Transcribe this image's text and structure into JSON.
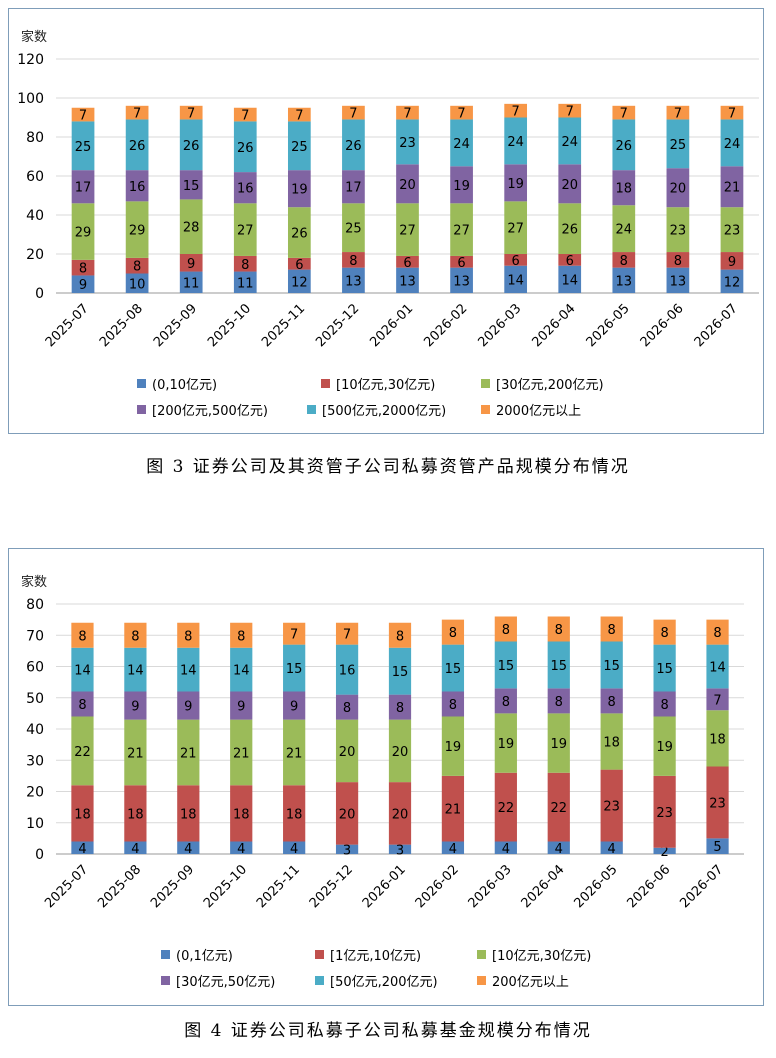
{
  "figures": [
    {
      "caption": "图 3   证券公司及其资管子公司私募资管产品规模分布情况",
      "chart_data": {
        "type": "bar",
        "stacked": true,
        "ylabel": "家数",
        "ylim": [
          0,
          120
        ],
        "yticks": [
          0,
          20,
          40,
          60,
          80,
          100,
          120
        ],
        "categories": [
          "2025-07",
          "2025-08",
          "2025-09",
          "2025-10",
          "2025-11",
          "2025-12",
          "2026-01",
          "2026-02",
          "2026-03",
          "2026-04",
          "2026-05",
          "2026-06",
          "2026-07"
        ],
        "series": [
          {
            "name": "(0,10亿元)",
            "color": "#4f81bd",
            "values": [
              9,
              10,
              11,
              11,
              12,
              13,
              13,
              13,
              14,
              14,
              13,
              13,
              12
            ]
          },
          {
            "name": "[10亿元,30亿元)",
            "color": "#c0504d",
            "values": [
              8,
              8,
              9,
              8,
              6,
              8,
              6,
              6,
              6,
              6,
              8,
              8,
              9
            ]
          },
          {
            "name": "[30亿元,200亿元)",
            "color": "#9bbb59",
            "values": [
              29,
              29,
              28,
              27,
              26,
              25,
              27,
              27,
              27,
              26,
              24,
              23,
              23
            ]
          },
          {
            "name": "[200亿元,500亿元)",
            "color": "#8064a2",
            "values": [
              17,
              16,
              15,
              16,
              19,
              17,
              20,
              19,
              19,
              20,
              18,
              20,
              21
            ]
          },
          {
            "name": "[500亿元,2000亿元)",
            "color": "#4bacc6",
            "values": [
              25,
              26,
              26,
              26,
              25,
              26,
              23,
              24,
              24,
              24,
              26,
              25,
              24
            ]
          },
          {
            "name": "2000亿元以上",
            "color": "#f79646",
            "values": [
              7,
              7,
              7,
              7,
              7,
              7,
              7,
              7,
              7,
              7,
              7,
              7,
              7
            ]
          }
        ],
        "grid": true,
        "legend_position": "bottom"
      }
    },
    {
      "caption": "图 4   证券公司私募子公司私募基金规模分布情况",
      "chart_data": {
        "type": "bar",
        "stacked": true,
        "ylabel": "家数",
        "ylim": [
          0,
          80
        ],
        "yticks": [
          0,
          10,
          20,
          30,
          40,
          50,
          60,
          70,
          80
        ],
        "categories": [
          "2025-07",
          "2025-08",
          "2025-09",
          "2025-10",
          "2025-11",
          "2025-12",
          "2026-01",
          "2026-02",
          "2026-03",
          "2026-04",
          "2026-05",
          "2026-06",
          "2026-07"
        ],
        "series": [
          {
            "name": "(0,1亿元)",
            "color": "#4f81bd",
            "values": [
              4,
              4,
              4,
              4,
              4,
              3,
              3,
              4,
              4,
              4,
              4,
              2,
              5
            ]
          },
          {
            "name": "[1亿元,10亿元)",
            "color": "#c0504d",
            "values": [
              18,
              18,
              18,
              18,
              18,
              20,
              20,
              21,
              22,
              22,
              23,
              23,
              23
            ]
          },
          {
            "name": "[10亿元,30亿元)",
            "color": "#9bbb59",
            "values": [
              22,
              21,
              21,
              21,
              21,
              20,
              20,
              19,
              19,
              19,
              18,
              19,
              18
            ]
          },
          {
            "name": "[30亿元,50亿元)",
            "color": "#8064a2",
            "values": [
              8,
              9,
              9,
              9,
              9,
              8,
              8,
              8,
              8,
              8,
              8,
              8,
              7
            ]
          },
          {
            "name": "[50亿元,200亿元)",
            "color": "#4bacc6",
            "values": [
              14,
              14,
              14,
              14,
              15,
              16,
              15,
              15,
              15,
              15,
              15,
              15,
              14
            ]
          },
          {
            "name": "200亿元以上",
            "color": "#f79646",
            "values": [
              8,
              8,
              8,
              8,
              7,
              7,
              8,
              8,
              8,
              8,
              8,
              8,
              8
            ]
          }
        ],
        "grid": true,
        "legend_position": "bottom"
      }
    }
  ]
}
